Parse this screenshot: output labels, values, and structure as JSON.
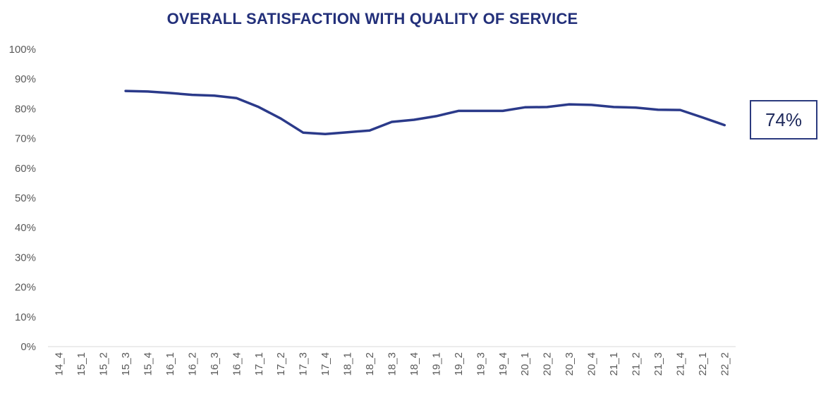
{
  "chart_data": {
    "type": "line",
    "title": "OVERALL SATISFACTION WITH QUALITY OF SERVICE",
    "xlabel": "",
    "ylabel": "",
    "ylim": [
      0,
      100
    ],
    "yticks": [
      "0%",
      "10%",
      "20%",
      "30%",
      "40%",
      "50%",
      "60%",
      "70%",
      "80%",
      "90%",
      "100%"
    ],
    "categories": [
      "14_4",
      "15_1",
      "15_2",
      "15_3",
      "15_4",
      "16_1",
      "16_2",
      "16_3",
      "16_4",
      "17_1",
      "17_2",
      "17_3",
      "17_4",
      "18_1",
      "18_2",
      "18_3",
      "18_4",
      "19_1",
      "19_2",
      "19_3",
      "19_4",
      "20_1",
      "20_2",
      "20_3",
      "20_4",
      "21_1",
      "21_2",
      "21_3",
      "21_4",
      "22_1",
      "22_2"
    ],
    "series": [
      {
        "values": [
          null,
          null,
          null,
          86,
          85.8,
          85.3,
          84.7,
          84.4,
          83.6,
          80.6,
          76.7,
          72,
          71.5,
          72.1,
          72.7,
          75.6,
          76.3,
          77.5,
          79.3,
          79.3,
          79.3,
          80.5,
          80.6,
          81.5,
          81.3,
          80.6,
          80.4,
          79.7,
          79.6,
          77.1,
          74.5
        ],
        "color": "#2b3a8a"
      }
    ],
    "grid": false,
    "legend": "none",
    "callout": "74%"
  }
}
